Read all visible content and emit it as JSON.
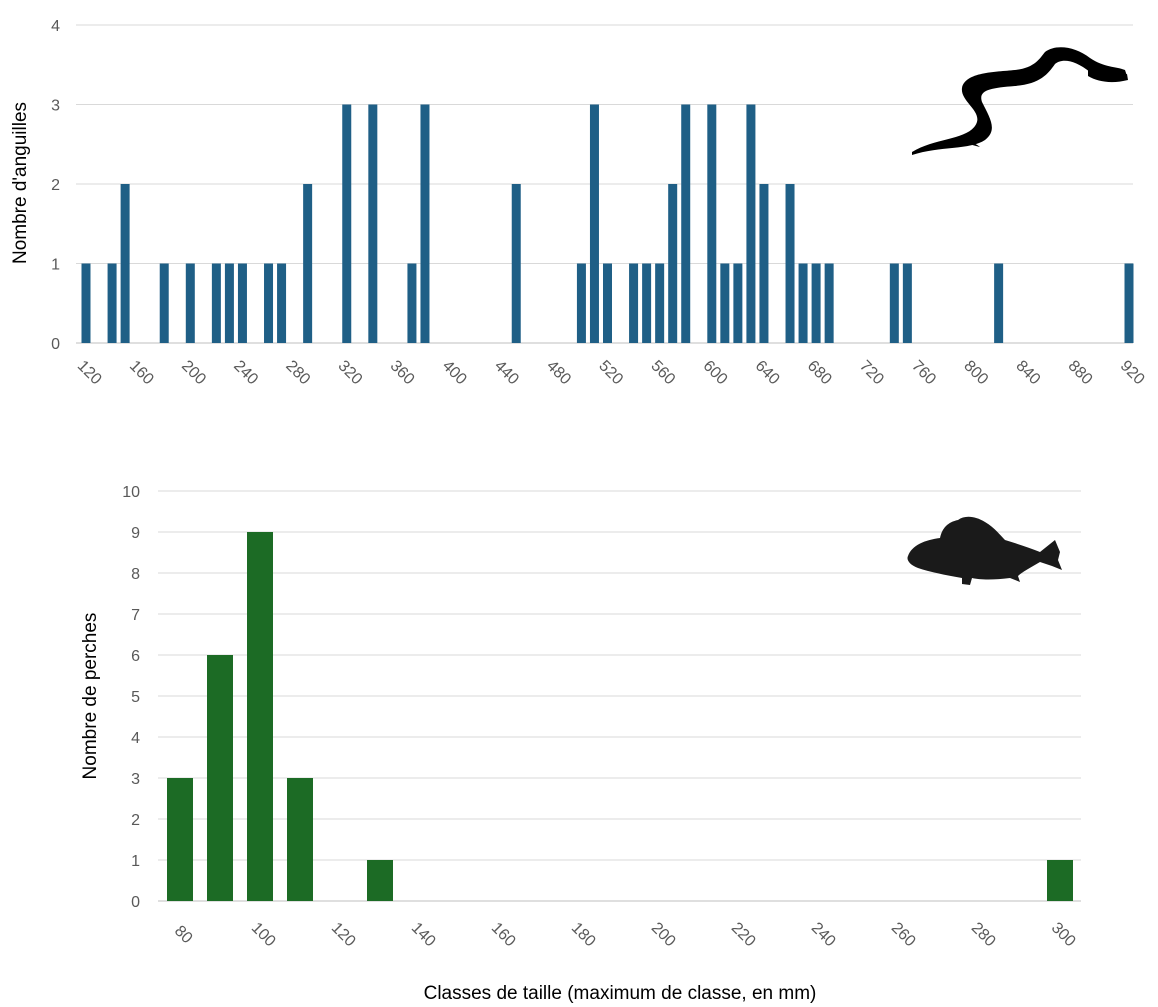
{
  "chart_data": [
    {
      "type": "bar",
      "ylabel": "Nombre d'anguilles",
      "xlabel": "",
      "ylim": [
        0,
        4
      ],
      "y_ticks": [
        0,
        1,
        2,
        3,
        4
      ],
      "x_ticks": [
        120,
        160,
        200,
        240,
        280,
        320,
        360,
        400,
        440,
        480,
        520,
        560,
        600,
        640,
        680,
        720,
        760,
        800,
        840,
        880,
        920
      ],
      "bin_width": 10,
      "x_range": [
        120,
        920
      ],
      "grid": true,
      "bar_color": "#1f5f86",
      "icon": "eel-silhouette-icon",
      "x": [
        120,
        140,
        150,
        180,
        200,
        220,
        230,
        240,
        260,
        270,
        290,
        320,
        340,
        370,
        380,
        450,
        500,
        510,
        520,
        540,
        550,
        560,
        570,
        580,
        600,
        610,
        620,
        630,
        640,
        660,
        670,
        680,
        690,
        740,
        750,
        820,
        920
      ],
      "values": [
        1,
        1,
        2,
        1,
        1,
        1,
        1,
        1,
        1,
        1,
        2,
        3,
        3,
        1,
        3,
        2,
        1,
        3,
        1,
        1,
        1,
        1,
        2,
        3,
        3,
        1,
        1,
        3,
        2,
        2,
        1,
        1,
        1,
        1,
        1,
        1,
        1
      ]
    },
    {
      "type": "bar",
      "ylabel": "Nombre de perches",
      "xlabel": "Classes de taille (maximum de classe, en mm)",
      "ylim": [
        0,
        10
      ],
      "y_ticks": [
        0,
        1,
        2,
        3,
        4,
        5,
        6,
        7,
        8,
        9,
        10
      ],
      "x_ticks": [
        80,
        100,
        120,
        140,
        160,
        180,
        200,
        220,
        240,
        260,
        280,
        300
      ],
      "bin_width": 10,
      "x_range": [
        80,
        300
      ],
      "grid": true,
      "bar_color": "#1c6b25",
      "icon": "perch-silhouette-icon",
      "x": [
        80,
        90,
        100,
        110,
        130,
        300
      ],
      "values": [
        3,
        6,
        9,
        3,
        1,
        1
      ]
    }
  ]
}
